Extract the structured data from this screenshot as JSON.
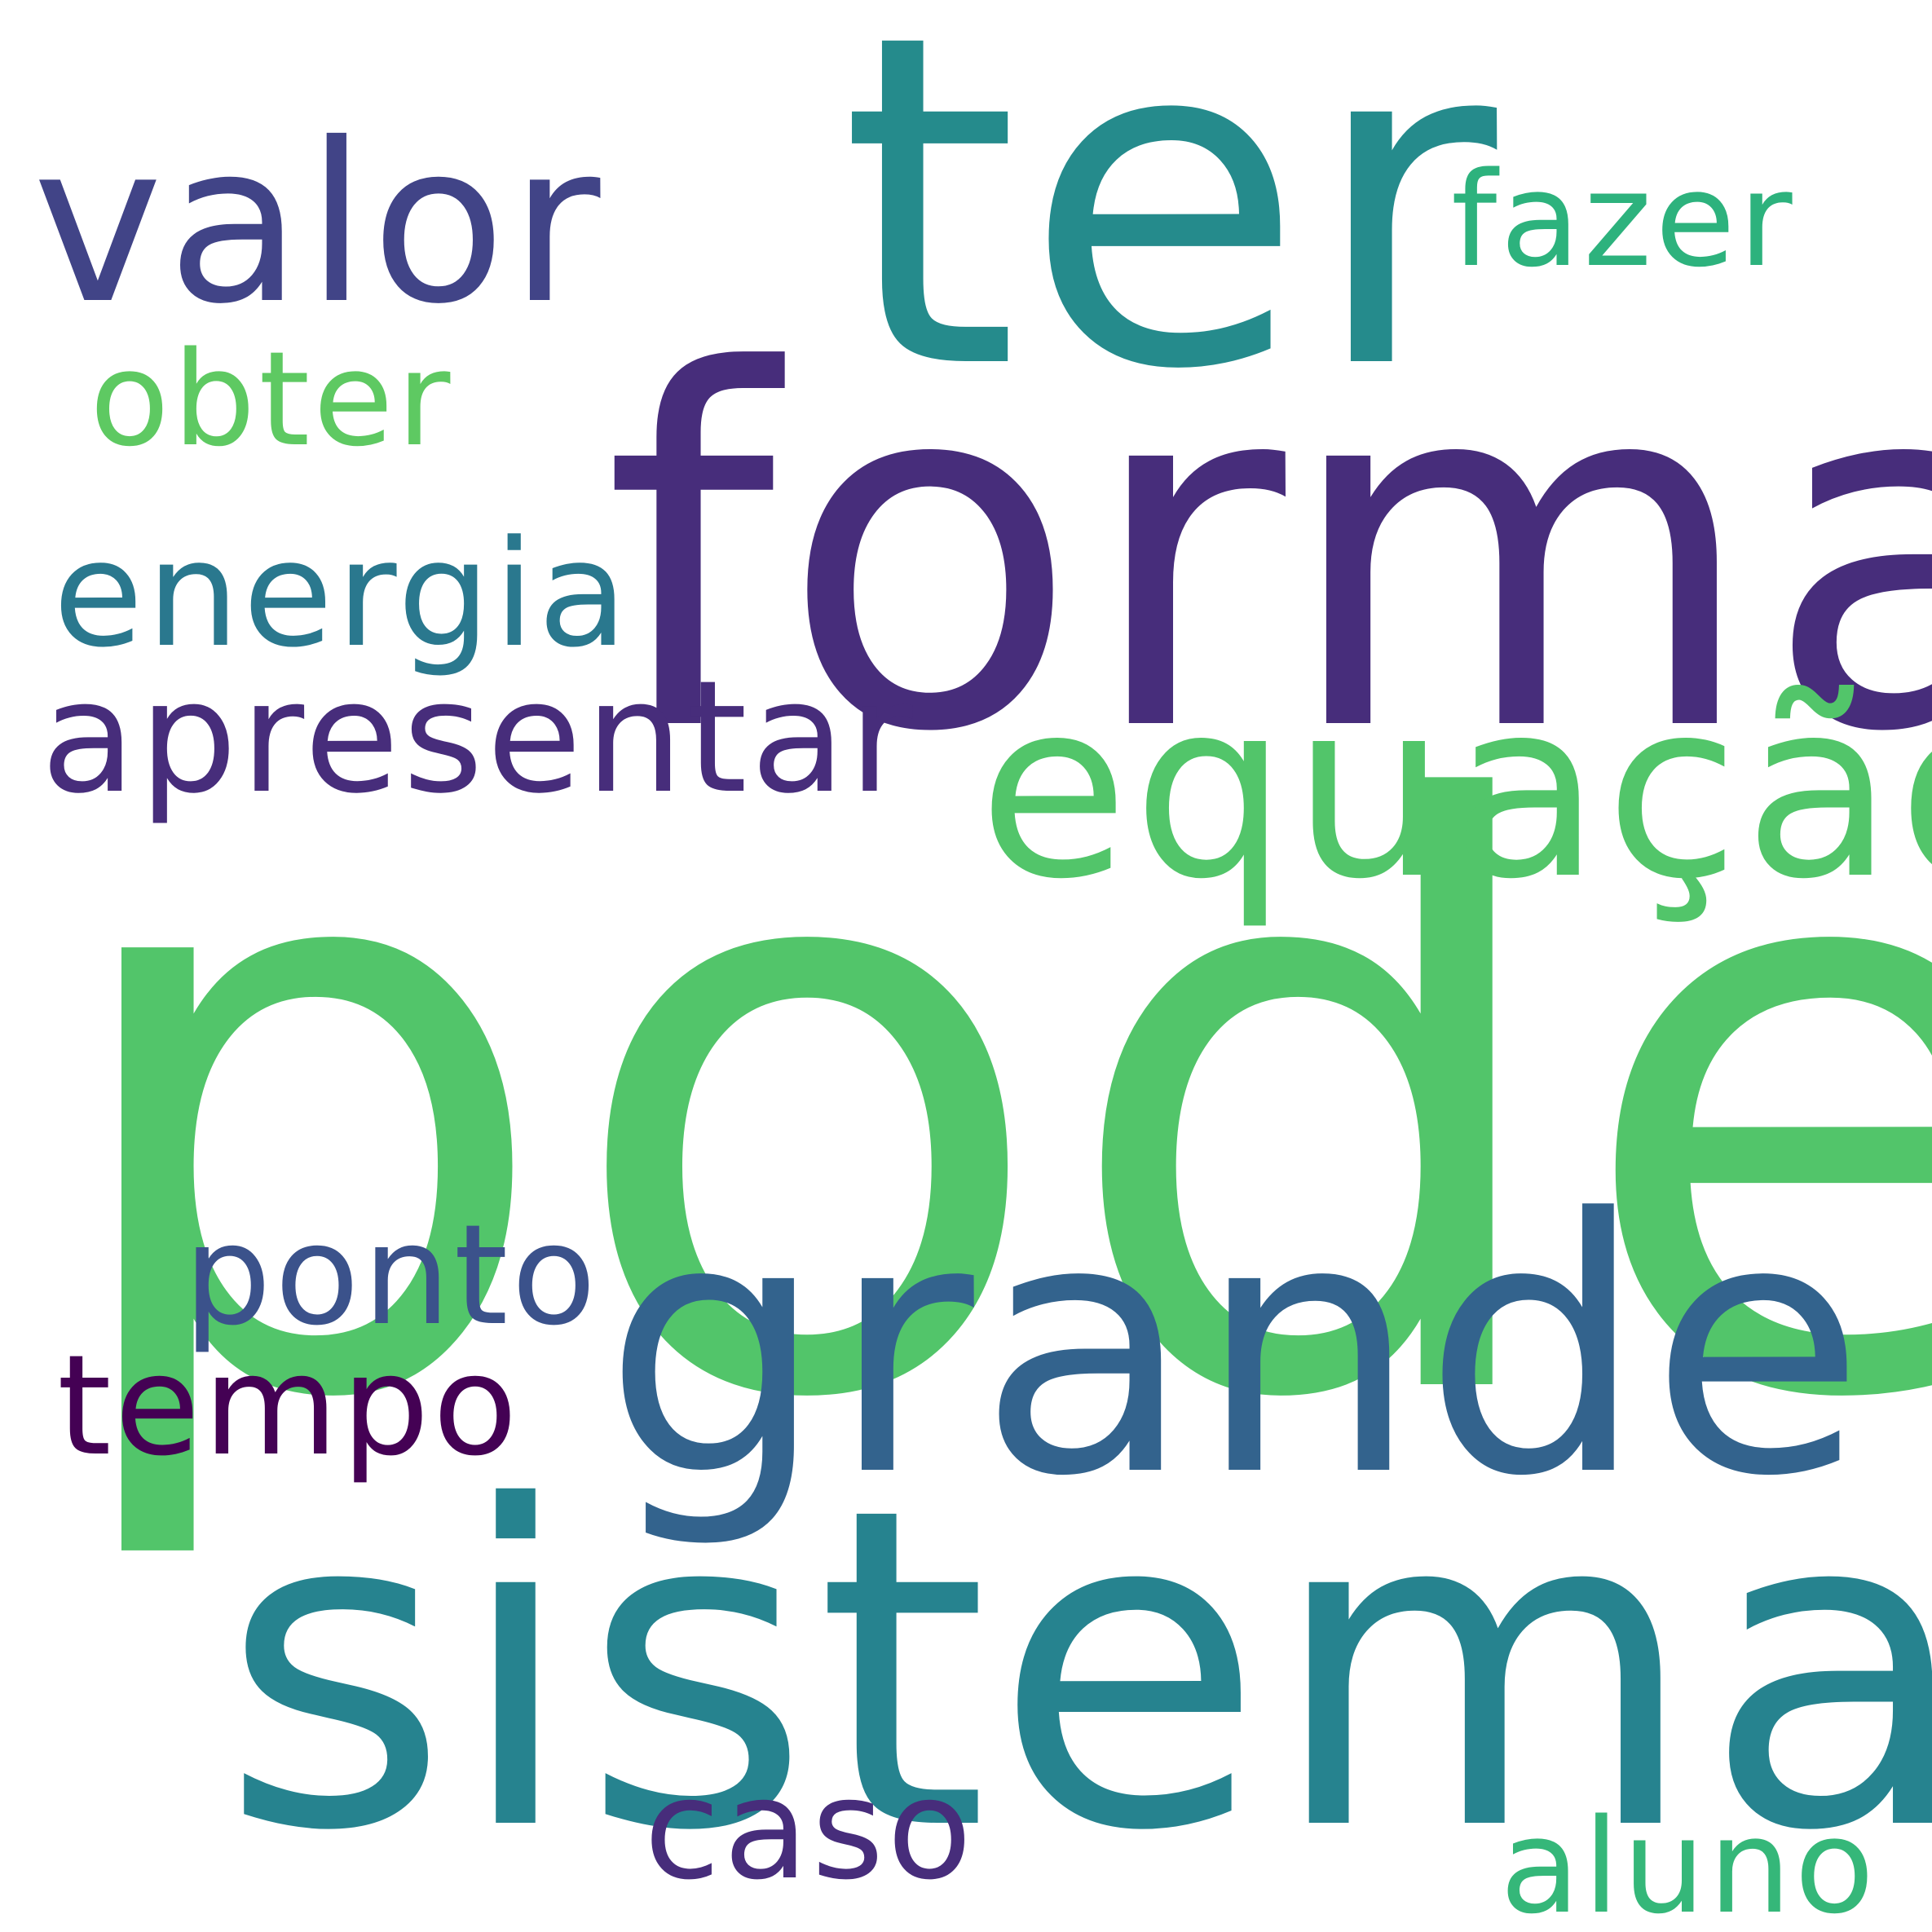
{
  "background_color": "#ffffff",
  "words": {
    "poder": {
      "text": "poder",
      "color": "#52c56a"
    },
    "ter": {
      "text": "ter",
      "color": "#258b8c"
    },
    "forma": {
      "text": "forma",
      "color": "#472d7b"
    },
    "sistema": {
      "text": "sistema",
      "color": "#26838f"
    },
    "grande": {
      "text": "grande",
      "color": "#33638d"
    },
    "equacao": {
      "text": "equação",
      "color": "#52c56a"
    },
    "valor": {
      "text": "valor",
      "color": "#414487"
    },
    "apresentar": {
      "text": "apresentar",
      "color": "#472d7b"
    },
    "energia": {
      "text": "energia",
      "color": "#2a788e"
    },
    "ponto": {
      "text": "ponto",
      "color": "#3b528b"
    },
    "tempo": {
      "text": "tempo",
      "color": "#440154"
    },
    "fazer": {
      "text": "fazer",
      "color": "#2db27d"
    },
    "obter": {
      "text": "obter",
      "color": "#5ec962"
    },
    "caso": {
      "text": "caso",
      "color": "#472d7b"
    },
    "aluno": {
      "text": "aluno",
      "color": "#35b779"
    }
  }
}
